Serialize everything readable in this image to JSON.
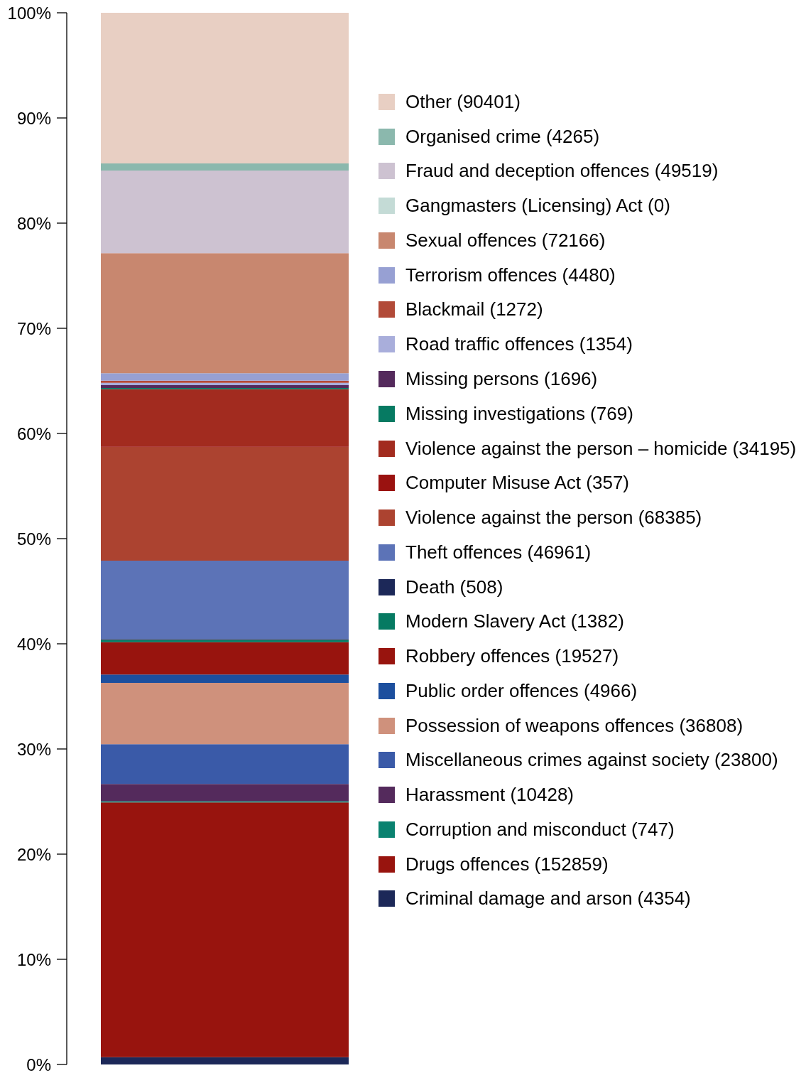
{
  "chart_data": {
    "type": "bar",
    "stacked": true,
    "categories": [
      null
    ],
    "series": [
      {
        "name": "Criminal damage and arson (4354)",
        "color": "#1c2858",
        "values": [
          0.69
        ]
      },
      {
        "name": "Drugs offences (152859)",
        "color": "#98140e",
        "values": [
          24.22
        ]
      },
      {
        "name": "Corruption and misconduct (747)",
        "color": "#0a8270",
        "values": [
          0.12
        ]
      },
      {
        "name": "Harassment (10428)",
        "color": "#542a5c",
        "values": [
          1.65
        ]
      },
      {
        "name": "Miscellaneous crimes against society (23800)",
        "color": "#3a5aa8",
        "values": [
          3.77
        ]
      },
      {
        "name": "Possession of weapons offences (36808)",
        "color": "#cf917c",
        "values": [
          5.83
        ]
      },
      {
        "name": "Public order offences (4966)",
        "color": "#1c4f9e",
        "values": [
          0.79
        ]
      },
      {
        "name": "Robbery offences (19527)",
        "color": "#98140e",
        "values": [
          3.09
        ]
      },
      {
        "name": "Modern Slavery Act (1382)",
        "color": "#067a62",
        "values": [
          0.22
        ]
      },
      {
        "name": "Death (508)",
        "color": "#1c2858",
        "values": [
          0.08
        ]
      },
      {
        "name": "Theft offences (46961)",
        "color": "#5c73b7",
        "values": [
          7.44
        ]
      },
      {
        "name": "Violence against the person (68385)",
        "color": "#ac4330",
        "values": [
          10.83
        ]
      },
      {
        "name": "Computer Misuse Act (357)",
        "color": "#9a1210",
        "values": [
          0.06
        ]
      },
      {
        "name": "Violence against the person – homicide (34195)",
        "color": "#a22b1f",
        "values": [
          5.42
        ]
      },
      {
        "name": "Missing investigations (769)",
        "color": "#067a62",
        "values": [
          0.12
        ]
      },
      {
        "name": "Missing persons (1696)",
        "color": "#542a5c",
        "values": [
          0.27
        ]
      },
      {
        "name": "Road traffic offences (1354)",
        "color": "#a9aedb",
        "values": [
          0.21
        ]
      },
      {
        "name": "Blackmail (1272)",
        "color": "#b24a38",
        "values": [
          0.2
        ]
      },
      {
        "name": "Terrorism offences (4480)",
        "color": "#97a0d3",
        "values": [
          0.71
        ]
      },
      {
        "name": "Sexual offences (72166)",
        "color": "#c8876f",
        "values": [
          11.43
        ]
      },
      {
        "name": "Gangmasters (Licensing) Act (0)",
        "color": "#c4dbd6",
        "values": [
          0
        ]
      },
      {
        "name": "Fraud and deception offences (49519)",
        "color": "#cdc2d1",
        "values": [
          7.85
        ]
      },
      {
        "name": "Organised crime (4265)",
        "color": "#8bb8ad",
        "values": [
          0.68
        ]
      },
      {
        "name": "Other (90401)",
        "color": "#e8cfc3",
        "values": [
          14.32
        ]
      }
    ],
    "ylim": [
      0,
      100
    ],
    "yticks": [
      {
        "value": 0,
        "label": "0%"
      },
      {
        "value": 10,
        "label": "10%"
      },
      {
        "value": 20,
        "label": "20%"
      },
      {
        "value": 30,
        "label": "30%"
      },
      {
        "value": 40,
        "label": "40%"
      },
      {
        "value": 50,
        "label": "50%"
      },
      {
        "value": 60,
        "label": "60%"
      },
      {
        "value": 70,
        "label": "70%"
      },
      {
        "value": 80,
        "label": "80%"
      },
      {
        "value": 90,
        "label": "90%"
      },
      {
        "value": 100,
        "label": "100%"
      }
    ],
    "legend": "right"
  }
}
